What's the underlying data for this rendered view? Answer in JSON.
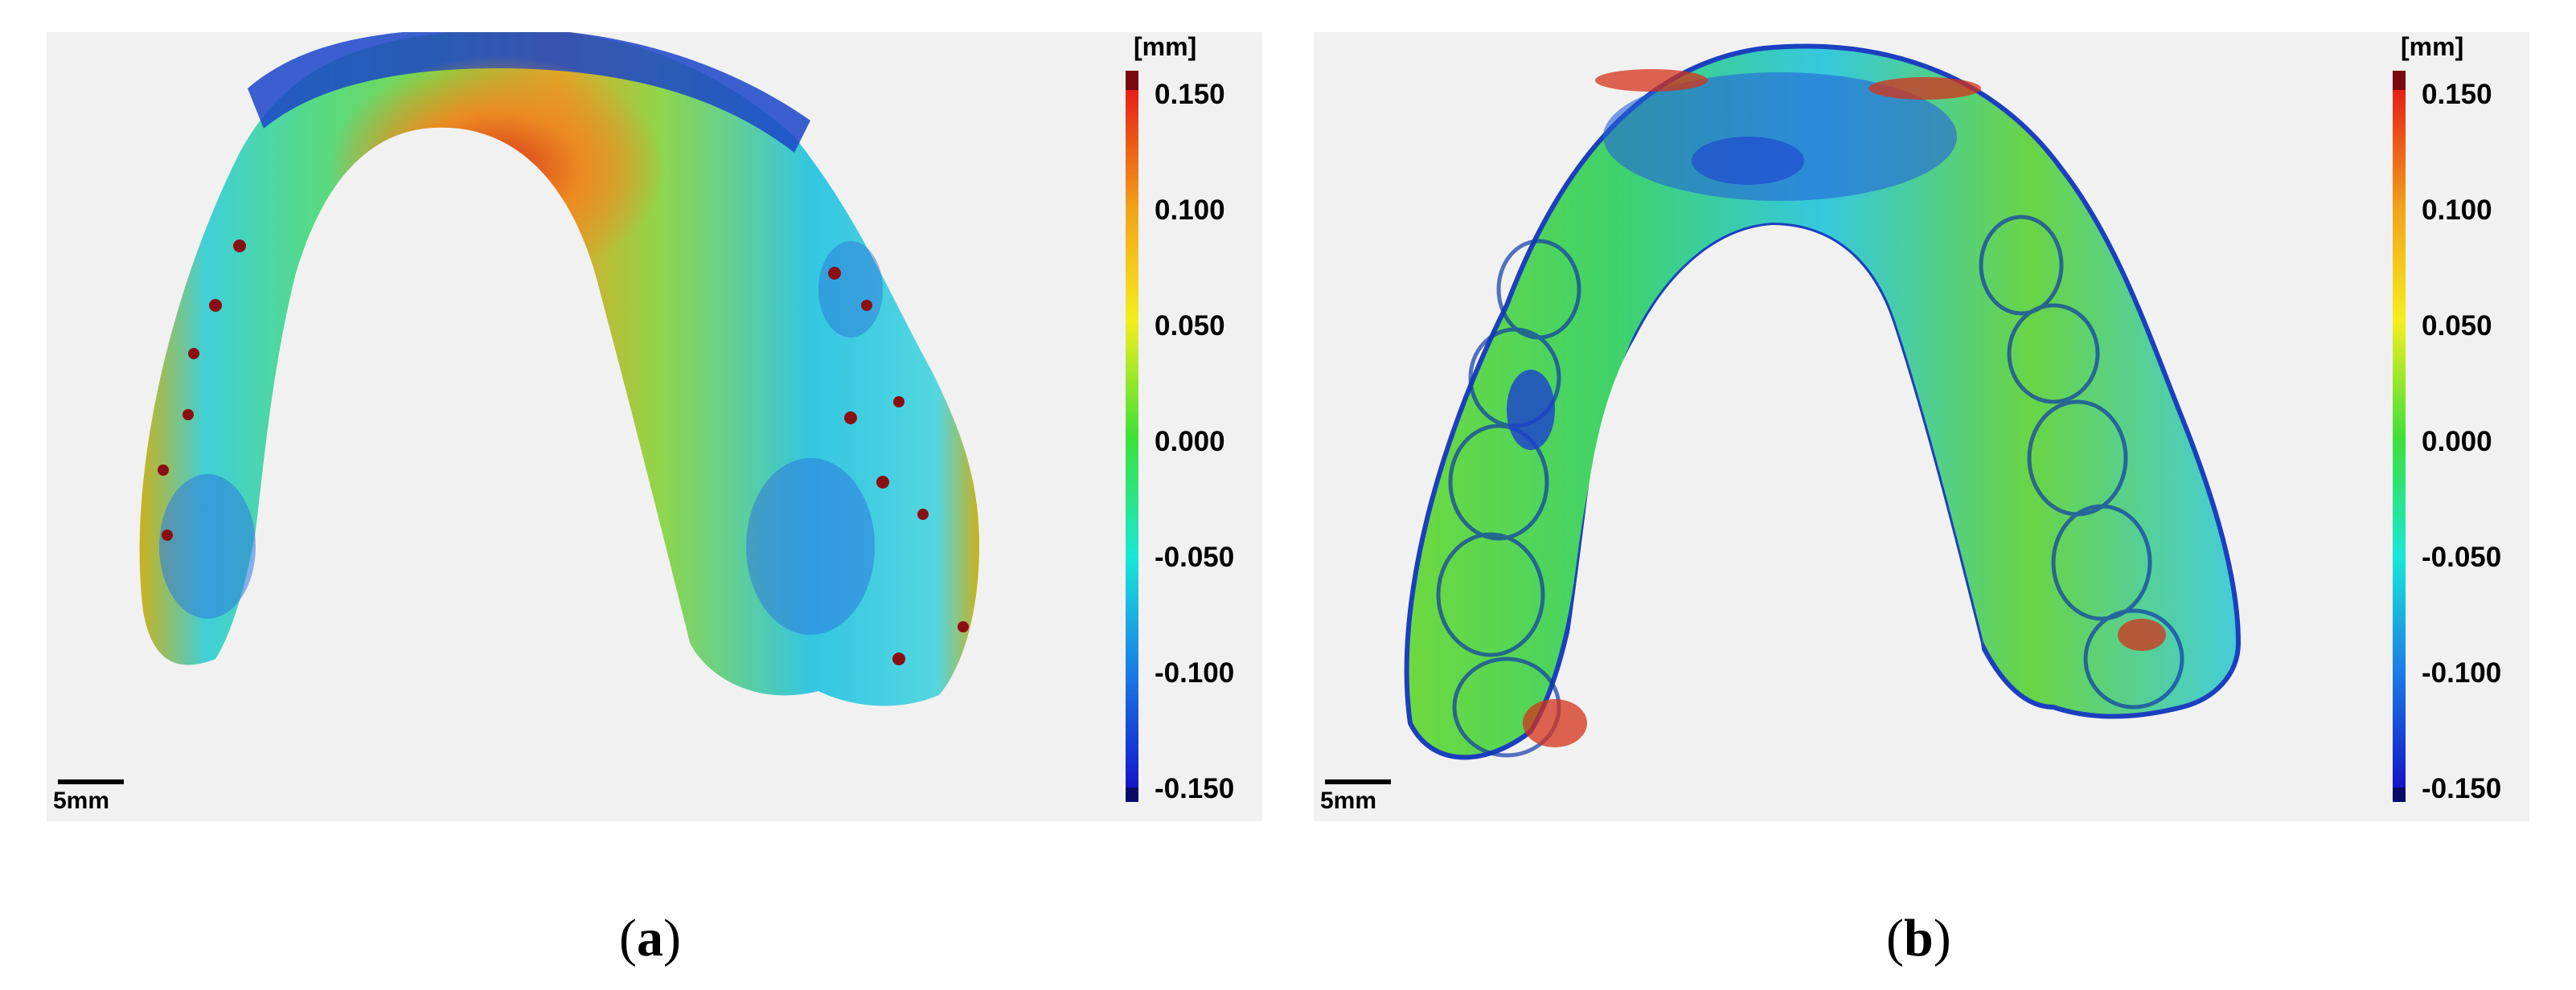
{
  "colorbar": {
    "unit": "[mm]",
    "ticks": [
      "0.150",
      "0.100",
      "0.050",
      "0.000",
      "-0.050",
      "-0.100",
      "-0.150"
    ],
    "colors": [
      "#7b0a10",
      "#e52016",
      "#f2a21b",
      "#f5ee1e",
      "#3ee03a",
      "#19e7d8",
      "#1a7fe6",
      "#1416c8",
      "#0a0a6a"
    ]
  },
  "scale_bar": {
    "label": "5mm"
  },
  "panels": [
    {
      "caption_letter": "a",
      "image": "surface-deviation-map-dental-model"
    },
    {
      "caption_letter": "b",
      "image": "surface-deviation-map-dental-aligner"
    }
  ]
}
